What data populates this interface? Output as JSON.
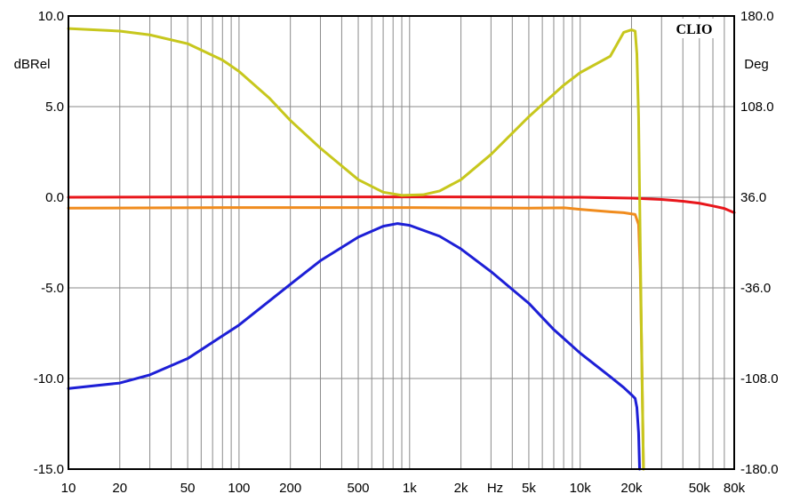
{
  "chart_data": {
    "type": "line",
    "brand": "CLIO",
    "x_unit_label": "Hz",
    "xscale": "log",
    "xlim": [
      10,
      80000
    ],
    "x_ticks": [
      10,
      20,
      50,
      100,
      200,
      500,
      1000,
      2000,
      5000,
      10000,
      20000,
      50000,
      80000
    ],
    "x_tick_labels": [
      "10",
      "20",
      "50",
      "100",
      "200",
      "500",
      "1k",
      "2k",
      "5k",
      "10k",
      "20k",
      "50k",
      "80k"
    ],
    "y_left": {
      "label": "dBRel",
      "lim": [
        -15,
        10
      ],
      "ticks": [
        10,
        5,
        0,
        -5,
        -10,
        -15
      ],
      "tick_labels": [
        "10.0",
        "5.0",
        "0.0",
        "-5.0",
        "-10.0",
        "-15.0"
      ]
    },
    "y_right": {
      "label": "Deg",
      "lim": [
        -180,
        180
      ],
      "ticks": [
        180,
        108,
        36,
        -36,
        -108,
        -180
      ],
      "tick_labels": [
        "180.0",
        "108.0",
        "36.0",
        "-36.0",
        "-108.0",
        "-180.0"
      ]
    },
    "grid": true,
    "series": [
      {
        "color": "#e8161b",
        "axis": "left",
        "points": [
          [
            10,
            0.0
          ],
          [
            100,
            0.02
          ],
          [
            1000,
            0.02
          ],
          [
            5000,
            0.01
          ],
          [
            10000,
            0.0
          ],
          [
            20000,
            -0.05
          ],
          [
            30000,
            -0.12
          ],
          [
            40000,
            -0.22
          ],
          [
            50000,
            -0.33
          ],
          [
            60000,
            -0.48
          ],
          [
            70000,
            -0.62
          ],
          [
            80000,
            -0.85
          ]
        ]
      },
      {
        "color": "#f08c1e",
        "axis": "left",
        "points": [
          [
            10,
            -0.6
          ],
          [
            100,
            -0.57
          ],
          [
            1000,
            -0.57
          ],
          [
            5000,
            -0.6
          ],
          [
            8000,
            -0.58
          ],
          [
            10000,
            -0.67
          ],
          [
            15000,
            -0.8
          ],
          [
            18000,
            -0.85
          ],
          [
            21000,
            -0.95
          ],
          [
            22000,
            -1.5
          ],
          [
            22500,
            -4.0
          ],
          [
            23000,
            -9.0
          ],
          [
            23500,
            -15.0
          ]
        ]
      },
      {
        "color": "#1d1fd6",
        "axis": "left",
        "points": [
          [
            10,
            -10.55
          ],
          [
            20,
            -10.25
          ],
          [
            30,
            -9.8
          ],
          [
            50,
            -8.9
          ],
          [
            100,
            -7.05
          ],
          [
            200,
            -4.8
          ],
          [
            300,
            -3.5
          ],
          [
            500,
            -2.2
          ],
          [
            700,
            -1.6
          ],
          [
            850,
            -1.45
          ],
          [
            1000,
            -1.55
          ],
          [
            1500,
            -2.15
          ],
          [
            2000,
            -2.85
          ],
          [
            3000,
            -4.1
          ],
          [
            5000,
            -5.85
          ],
          [
            7000,
            -7.3
          ],
          [
            10000,
            -8.6
          ],
          [
            15000,
            -9.9
          ],
          [
            18000,
            -10.5
          ],
          [
            20000,
            -10.9
          ],
          [
            21000,
            -11.1
          ],
          [
            21500,
            -11.6
          ],
          [
            22000,
            -13.0
          ],
          [
            22300,
            -15.0
          ]
        ]
      },
      {
        "color": "#c7c71d",
        "axis": "right",
        "points": [
          [
            10,
            170
          ],
          [
            20,
            168
          ],
          [
            30,
            165
          ],
          [
            50,
            158
          ],
          [
            80,
            145
          ],
          [
            100,
            136
          ],
          [
            150,
            115
          ],
          [
            200,
            97
          ],
          [
            300,
            75
          ],
          [
            500,
            50
          ],
          [
            700,
            40
          ],
          [
            900,
            37.5
          ],
          [
            1200,
            38
          ],
          [
            1500,
            41
          ],
          [
            2000,
            50
          ],
          [
            3000,
            70
          ],
          [
            5000,
            100
          ],
          [
            8000,
            125
          ],
          [
            10000,
            135
          ],
          [
            15000,
            148
          ],
          [
            18000,
            167
          ],
          [
            20000,
            169
          ],
          [
            21000,
            168
          ],
          [
            21500,
            150
          ],
          [
            22000,
            100
          ],
          [
            22500,
            0
          ],
          [
            23000,
            -100
          ],
          [
            23500,
            -180
          ]
        ]
      }
    ]
  }
}
